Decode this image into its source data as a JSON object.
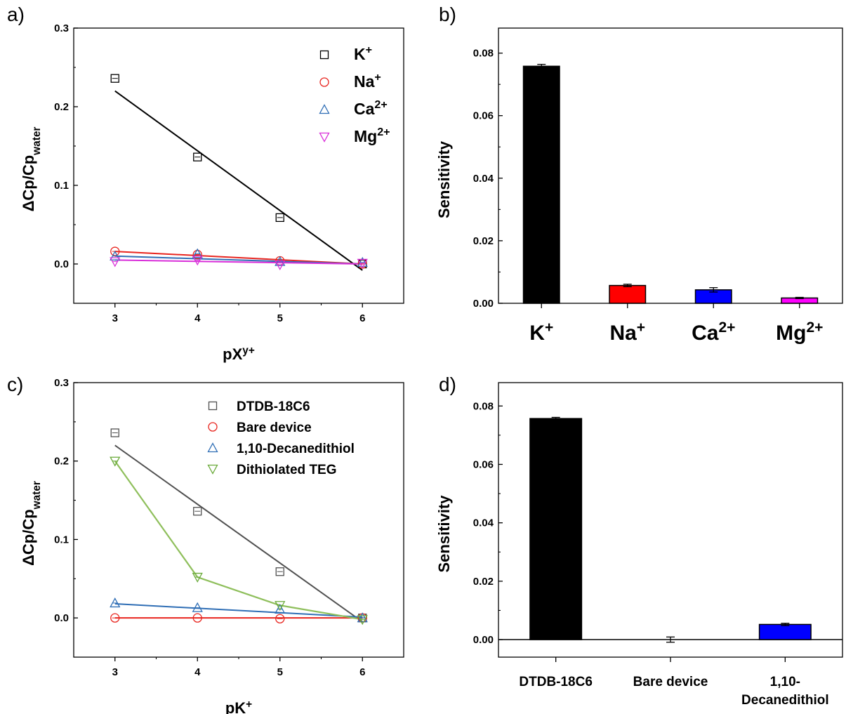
{
  "chart_data": [
    {
      "panel": "a)",
      "type": "scatter",
      "xlabel": "pX",
      "xlabel_sup": "y+",
      "ylabel": "ΔCp/Cp",
      "ylabel_sub": "water",
      "xlim": [
        2.5,
        6.5
      ],
      "ylim": [
        -0.05,
        0.3
      ],
      "xticks": [
        3,
        4,
        5,
        6
      ],
      "yticks": [
        0.0,
        0.1,
        0.2,
        0.3
      ],
      "ytick_labels": [
        "0.0",
        "0.1",
        "0.2",
        "0.3"
      ],
      "legend_position": "top-right",
      "series": [
        {
          "name": "K",
          "name_sup": "+",
          "color": "#000000",
          "marker": "square",
          "x": [
            3,
            4,
            5,
            6
          ],
          "y": [
            0.236,
            0.136,
            0.059,
            0.0
          ],
          "fit": [
            0.22,
            -0.008
          ]
        },
        {
          "name": "Na",
          "name_sup": "+",
          "color": "#e8251f",
          "marker": "circle",
          "x": [
            3,
            4,
            5,
            6
          ],
          "y": [
            0.016,
            0.012,
            0.004,
            0.0
          ],
          "fit": [
            0.016,
            0.0
          ]
        },
        {
          "name": "Ca",
          "name_sup": "2+",
          "color": "#2f6eb5",
          "marker": "triangle-up",
          "x": [
            3,
            4,
            5,
            6
          ],
          "y": [
            0.01,
            0.013,
            0.003,
            0.002
          ],
          "fit": [
            0.01,
            0.0
          ]
        },
        {
          "name": "Mg",
          "name_sup": "2+",
          "color": "#d92fd9",
          "marker": "triangle-down",
          "x": [
            3,
            4,
            5,
            6
          ],
          "y": [
            0.003,
            0.005,
            -0.001,
            0.001
          ],
          "fit": [
            0.005,
            0.0
          ]
        }
      ]
    },
    {
      "panel": "b)",
      "type": "bar",
      "ylabel": "Sensitivity",
      "ylim": [
        0.0,
        0.088
      ],
      "yticks": [
        0.0,
        0.02,
        0.04,
        0.06,
        0.08
      ],
      "ytick_labels": [
        "0.00",
        "0.02",
        "0.04",
        "0.06",
        "0.08"
      ],
      "categories": [
        {
          "label": "K",
          "sup": "+"
        },
        {
          "label": "Na",
          "sup": "+"
        },
        {
          "label": "Ca",
          "sup": "2+"
        },
        {
          "label": "Mg",
          "sup": "2+"
        }
      ],
      "values": [
        0.0758,
        0.0057,
        0.0043,
        0.0017
      ],
      "errors": [
        0.0006,
        0.0004,
        0.0007,
        0.0002
      ],
      "colors": [
        "#000000",
        "#ff0000",
        "#0000ff",
        "#ff00ff"
      ]
    },
    {
      "panel": "c)",
      "type": "scatter",
      "xlabel": "pK",
      "xlabel_sup": "+",
      "ylabel": "ΔCp/Cp",
      "ylabel_sub": "water",
      "xlim": [
        2.5,
        6.5
      ],
      "ylim": [
        -0.05,
        0.3
      ],
      "xticks": [
        3,
        4,
        5,
        6
      ],
      "yticks": [
        0.0,
        0.1,
        0.2,
        0.3
      ],
      "ytick_labels": [
        "0.0",
        "0.1",
        "0.2",
        "0.3"
      ],
      "legend_position": "top-right",
      "series": [
        {
          "name": "DTDB-18C6",
          "color": "#505050",
          "marker": "square",
          "x": [
            3,
            4,
            5,
            6
          ],
          "y": [
            0.236,
            0.136,
            0.059,
            0.0
          ],
          "fit": [
            0.22,
            -0.005
          ]
        },
        {
          "name": "Bare device",
          "color": "#e8251f",
          "marker": "circle",
          "x": [
            3,
            4,
            5,
            6
          ],
          "y": [
            0.0,
            0.0,
            -0.001,
            0.0
          ],
          "fit": [
            0.0,
            0.0
          ]
        },
        {
          "name": "1,10-Decanedithiol",
          "color": "#2f6eb5",
          "marker": "triangle-up",
          "x": [
            3,
            4,
            5,
            6
          ],
          "y": [
            0.019,
            0.013,
            0.011,
            0.0
          ],
          "fit": [
            0.018,
            0.001
          ]
        },
        {
          "name": "Dithiolated TEG",
          "color": "#6aaa3a",
          "marker": "triangle-down",
          "x": [
            3,
            4,
            5,
            6
          ],
          "y": [
            0.2,
            0.052,
            0.016,
            -0.002
          ],
          "connect": true
        }
      ]
    },
    {
      "panel": "d)",
      "type": "bar",
      "ylabel": "Sensitivity",
      "ylim": [
        -0.006,
        0.088
      ],
      "yticks": [
        0.0,
        0.02,
        0.04,
        0.06,
        0.08
      ],
      "ytick_labels": [
        "0.00",
        "0.02",
        "0.04",
        "0.06",
        "0.08"
      ],
      "categories": [
        {
          "label": "DTDB-18C6"
        },
        {
          "label": "Bare device"
        },
        {
          "label": "1,10-",
          "label2": "Decanedithiol"
        }
      ],
      "values": [
        0.0757,
        0.0,
        0.0052
      ],
      "errors": [
        0.0004,
        0.0009,
        0.0004
      ],
      "colors": [
        "#000000",
        "#ffffff",
        "#0000ff"
      ]
    }
  ]
}
